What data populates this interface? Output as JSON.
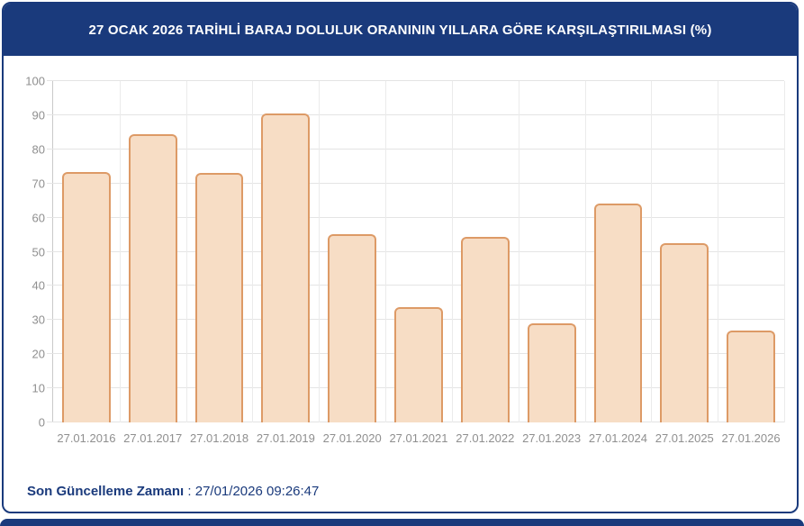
{
  "colors": {
    "navy": "#1A3A7C",
    "bar_fill": "#f7ddc5",
    "bar_border": "#dd9a66",
    "grid": "#e4e4e4",
    "axis": "#c9c9c9",
    "tick_text": "#8f8f8f",
    "title_text": "#ffffff"
  },
  "header": {
    "title": "27 OCAK 2026 TARİHLİ BARAJ DOLULUK ORANININ YILLARA GÖRE KARŞILAŞTIRILMASI (%)"
  },
  "footer": {
    "label": "Son Güncelleme Zamanı",
    "separator": " : ",
    "value": "27/01/2026 09:26:47"
  },
  "chart_data": {
    "type": "bar",
    "title": "27 OCAK 2026 TARİHLİ BARAJ DOLULUK ORANININ YILLARA GÖRE KARŞILAŞTIRILMASI (%)",
    "categories": [
      "27.01.2016",
      "27.01.2017",
      "27.01.2018",
      "27.01.2019",
      "27.01.2020",
      "27.01.2021",
      "27.01.2022",
      "27.01.2023",
      "27.01.2024",
      "27.01.2025",
      "27.01.2026"
    ],
    "values": [
      73.4,
      84.4,
      73.1,
      90.5,
      55.1,
      33.9,
      54.4,
      28.9,
      64.0,
      52.4,
      27.0
    ],
    "xlabel": "",
    "ylabel": "",
    "ylim": [
      0,
      100
    ],
    "ytick_step": 10,
    "yticks": [
      0,
      10,
      20,
      30,
      40,
      50,
      60,
      70,
      80,
      90,
      100
    ],
    "grid": true,
    "legend": false,
    "bar_fill": "#f7ddc5",
    "bar_border": "#dd9a66"
  }
}
